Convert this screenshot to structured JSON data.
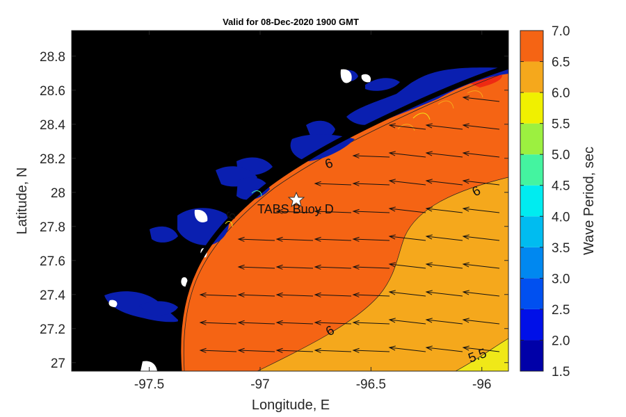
{
  "title": "Valid for 08-Dec-2020 1900 GMT",
  "xlabel": "Longitude, E",
  "ylabel": "Latitude, N",
  "colorbar_label": "Wave Period, sec",
  "x_ticks": [
    "-97.5",
    "-97",
    "-96.5",
    "-96"
  ],
  "y_ticks": [
    "27",
    "27.2",
    "27.4",
    "27.6",
    "27.8",
    "28",
    "28.2",
    "28.4",
    "28.6",
    "28.8"
  ],
  "colorbar_ticks": [
    "1.5",
    "2.0",
    "2.5",
    "3.0",
    "3.5",
    "4.0",
    "4.5",
    "5.0",
    "5.5",
    "6.0",
    "6.5",
    "7.0"
  ],
  "buoy_label": "TABS Buoy D",
  "contour_labels": [
    "6",
    "6",
    "6",
    "6",
    "5.5"
  ],
  "colors": {
    "land": "#000000",
    "bays": "#0a1fb0",
    "period_6_0": "#f56414",
    "period_5_5": "#f5a81c",
    "period_5_0": "#f0e818",
    "period_6_5": "#ee2a12"
  },
  "chart_data": {
    "type": "heatmap",
    "title": "Valid for 08-Dec-2020 1900 GMT",
    "xlabel": "Longitude, E",
    "ylabel": "Latitude, N",
    "xlim": [
      -97.85,
      -95.88
    ],
    "ylim": [
      26.95,
      28.95
    ],
    "colorbar": {
      "label": "Wave Period, sec",
      "range": [
        1.5,
        7.0
      ],
      "levels": [
        1.5,
        2.0,
        2.5,
        3.0,
        3.5,
        4.0,
        4.5,
        5.0,
        5.5,
        6.0,
        6.5,
        7.0
      ],
      "colors": [
        "#0000a8",
        "#0010e8",
        "#0050f0",
        "#0088f0",
        "#00bcf0",
        "#00ecf0",
        "#44f4a0",
        "#9cf040",
        "#f0f000",
        "#f5a81c",
        "#f56414",
        "#ee1c10"
      ]
    },
    "regions": [
      {
        "period_range": [
          6.0,
          6.5
        ],
        "area": "nearshore Gulf of Mexico"
      },
      {
        "period_range": [
          5.5,
          6.0
        ],
        "area": "offshore southeast"
      },
      {
        "period_range": [
          5.0,
          5.5
        ],
        "area": "far southeast corner"
      }
    ],
    "wave_direction": "toward west / west-southwest (arrows pointing left)",
    "annotations": [
      {
        "text": "TABS Buoy D",
        "lon": -96.85,
        "lat": 27.94,
        "marker": "star"
      }
    ]
  }
}
